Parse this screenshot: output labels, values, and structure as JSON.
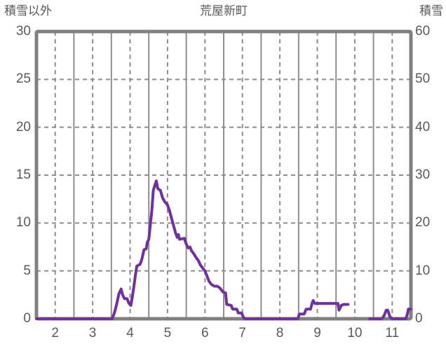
{
  "header": {
    "left_axis_caption": "積雪以外",
    "title": "荒屋新町",
    "right_axis_caption": "積雪"
  },
  "chart_data": {
    "type": "line",
    "title": "荒屋新町",
    "x_range": [
      1.5,
      11.5
    ],
    "x_ticks": [
      2,
      3,
      4,
      5,
      6,
      7,
      8,
      9,
      10,
      11
    ],
    "left_axis": {
      "caption": "積雪以外",
      "range": [
        0,
        30
      ],
      "ticks": [
        0,
        5,
        10,
        15,
        20,
        25,
        30
      ]
    },
    "right_axis": {
      "caption": "積雪",
      "range": [
        0,
        60
      ],
      "ticks": [
        0,
        10,
        20,
        30,
        40,
        50,
        60
      ]
    },
    "grid": {
      "horizontal_dashed_values": [
        5,
        10,
        15,
        20,
        25
      ],
      "vertical_dashed_at_x_ticks": true,
      "vertical_solid_at_half_steps": [
        2.5,
        3.5,
        4.5,
        5.5,
        6.5,
        7.5,
        8.5,
        9.5,
        10.5
      ]
    },
    "colors": {
      "line": "#7030A0",
      "frame": "#808080",
      "grid": "#8e8e8e",
      "text": "#595959"
    },
    "series": [
      {
        "name": "snow-depth",
        "units": "left-axis units",
        "segments": [
          [
            [
              1.5,
              0
            ],
            [
              3.52,
              0
            ],
            [
              3.58,
              0.6
            ],
            [
              3.64,
              1.5
            ],
            [
              3.7,
              2.6
            ],
            [
              3.76,
              3.1
            ],
            [
              3.8,
              2.5
            ],
            [
              3.85,
              2.1
            ],
            [
              3.92,
              2.1
            ],
            [
              3.97,
              1.6
            ],
            [
              4.02,
              1.4
            ],
            [
              4.06,
              2.3
            ],
            [
              4.1,
              3.3
            ],
            [
              4.14,
              4.5
            ],
            [
              4.18,
              5.5
            ],
            [
              4.27,
              5.7
            ],
            [
              4.32,
              6.3
            ],
            [
              4.37,
              7.2
            ],
            [
              4.43,
              7.3
            ],
            [
              4.46,
              8
            ],
            [
              4.5,
              8.3
            ],
            [
              4.58,
              11.3
            ],
            [
              4.62,
              13.4
            ],
            [
              4.66,
              13.9
            ],
            [
              4.7,
              14.4
            ],
            [
              4.74,
              13.6
            ],
            [
              4.81,
              13.4
            ],
            [
              4.87,
              12.6
            ],
            [
              4.93,
              12.2
            ],
            [
              5,
              11.9
            ],
            [
              5.06,
              11.2
            ],
            [
              5.12,
              10.3
            ],
            [
              5.17,
              9.6
            ],
            [
              5.22,
              8.9
            ],
            [
              5.26,
              8.5
            ],
            [
              5.29,
              8.8
            ],
            [
              5.32,
              8.3
            ],
            [
              5.45,
              8.4
            ],
            [
              5.5,
              7.8
            ],
            [
              5.55,
              7.4
            ],
            [
              5.6,
              7.5
            ],
            [
              5.64,
              7.1
            ],
            [
              5.7,
              6.8
            ],
            [
              5.76,
              6.4
            ],
            [
              5.82,
              6.1
            ],
            [
              5.88,
              5.6
            ],
            [
              5.94,
              5.3
            ],
            [
              6,
              5
            ],
            [
              6.06,
              4.4
            ],
            [
              6.11,
              3.9
            ],
            [
              6.17,
              3.6
            ],
            [
              6.25,
              3.4
            ],
            [
              6.33,
              3.4
            ],
            [
              6.4,
              3.2
            ],
            [
              6.48,
              2.8
            ],
            [
              6.55,
              2.7
            ],
            [
              6.58,
              1.5
            ],
            [
              6.7,
              1.4
            ],
            [
              6.74,
              1
            ],
            [
              6.85,
              1
            ],
            [
              6.89,
              0.6
            ],
            [
              6.98,
              0.6
            ],
            [
              7.02,
              0.2
            ],
            [
              7.06,
              0
            ],
            [
              8.48,
              0
            ],
            [
              8.52,
              0.5
            ],
            [
              8.65,
              0.5
            ],
            [
              8.7,
              1
            ],
            [
              8.82,
              1
            ],
            [
              8.86,
              1.6
            ],
            [
              8.89,
              1.9
            ],
            [
              8.93,
              1.6
            ],
            [
              9.55,
              1.6
            ],
            [
              9.58,
              0.9
            ],
            [
              9.64,
              1.4
            ],
            [
              9.7,
              1.5
            ],
            [
              9.82,
              1.5
            ]
          ],
          [
            [
              10.4,
              0
            ],
            [
              10.72,
              0
            ],
            [
              10.78,
              0.3
            ],
            [
              10.84,
              0.9
            ],
            [
              10.88,
              0.9
            ],
            [
              10.94,
              0.2
            ],
            [
              11,
              0
            ],
            [
              11.36,
              0
            ],
            [
              11.4,
              0.4
            ],
            [
              11.43,
              1
            ],
            [
              11.49,
              1
            ]
          ]
        ]
      }
    ]
  }
}
